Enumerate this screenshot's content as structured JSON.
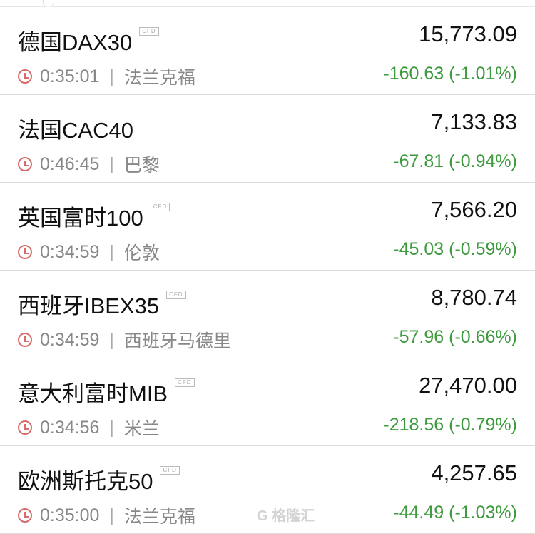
{
  "rows": [
    {
      "name": "德国DAX30",
      "cfd": "CFD",
      "price": "15,773.09",
      "time": "0:35:01",
      "city": "法兰克福",
      "change": "-160.63 (-1.01%)"
    },
    {
      "name": "法国CAC40",
      "cfd": "",
      "price": "7,133.83",
      "time": "0:46:45",
      "city": "巴黎",
      "change": "-67.81 (-0.94%)"
    },
    {
      "name": "英国富时100",
      "cfd": "CFD",
      "price": "7,566.20",
      "time": "0:34:59",
      "city": "伦敦",
      "change": "-45.03 (-0.59%)"
    },
    {
      "name": "西班牙IBEX35",
      "cfd": "CFD",
      "price": "8,780.74",
      "time": "0:34:59",
      "city": "西班牙马德里",
      "change": "-57.96 (-0.66%)"
    },
    {
      "name": "意大利富时MIB",
      "cfd": "CFD",
      "price": "27,470.00",
      "time": "0:34:56",
      "city": "米兰",
      "change": "-218.56 (-0.79%)"
    },
    {
      "name": "欧洲斯托克50",
      "cfd": "CFD",
      "price": "4,257.65",
      "time": "0:35:00",
      "city": "法兰克福",
      "change": "-44.49 (-1.03%)"
    }
  ],
  "separator": "|",
  "watermark": "G 格隆汇",
  "colors": {
    "down": "#3d9a3d",
    "clock": "#d96a6a"
  }
}
